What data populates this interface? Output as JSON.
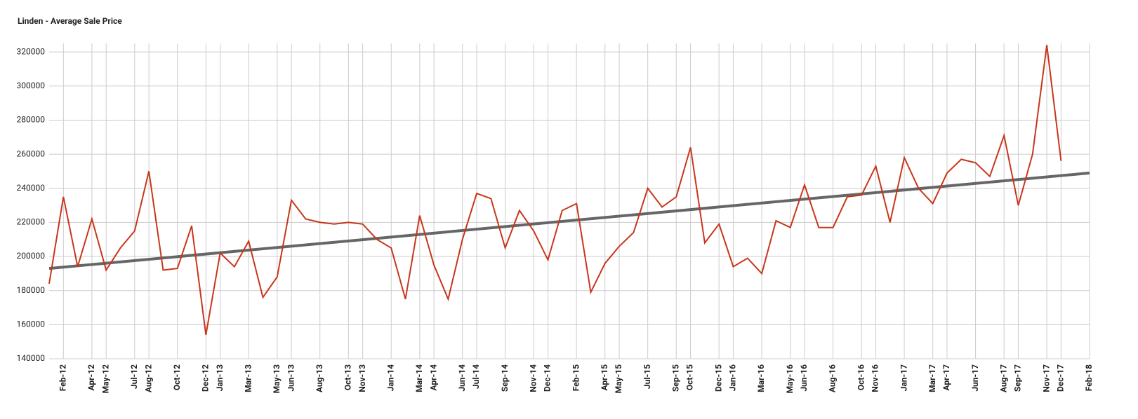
{
  "chart_data": {
    "type": "line",
    "title": "Linden - Average Sale Price",
    "x": [
      "2012-01",
      "2012-02",
      "2012-03",
      "2012-04",
      "2012-05",
      "2012-06",
      "2012-07",
      "2012-08",
      "2012-09",
      "2012-10",
      "2012-11",
      "2012-12",
      "2013-01",
      "2013-02",
      "2013-03",
      "2013-04",
      "2013-05",
      "2013-06",
      "2013-07",
      "2013-08",
      "2013-09",
      "2013-10",
      "2013-11",
      "2013-12",
      "2014-01",
      "2014-02",
      "2014-03",
      "2014-04",
      "2014-05",
      "2014-06",
      "2014-07",
      "2014-08",
      "2014-09",
      "2014-10",
      "2014-11",
      "2014-12",
      "2015-01",
      "2015-02",
      "2015-03",
      "2015-04",
      "2015-05",
      "2015-06",
      "2015-07",
      "2015-08",
      "2015-09",
      "2015-10",
      "2015-11",
      "2015-12",
      "2016-01",
      "2016-02",
      "2016-03",
      "2016-04",
      "2016-05",
      "2016-06",
      "2016-07",
      "2016-08",
      "2016-09",
      "2016-10",
      "2016-11",
      "2016-12",
      "2017-01",
      "2017-02",
      "2017-03",
      "2017-04",
      "2017-05",
      "2017-06",
      "2017-07",
      "2017-08",
      "2017-09",
      "2017-10",
      "2017-11",
      "2017-12"
    ],
    "values": [
      184000,
      235000,
      194000,
      222000,
      192000,
      205000,
      215000,
      250000,
      192000,
      193000,
      218000,
      154000,
      202000,
      194000,
      209000,
      176000,
      188000,
      233000,
      222000,
      220000,
      219000,
      220000,
      219000,
      210000,
      205000,
      175000,
      224000,
      195000,
      175000,
      210000,
      237000,
      234000,
      205000,
      227000,
      215000,
      198000,
      227000,
      231000,
      179000,
      196000,
      206000,
      214000,
      240000,
      229000,
      235000,
      264000,
      208000,
      219000,
      194000,
      199000,
      190000,
      221000,
      217000,
      242000,
      217000,
      217000,
      235000,
      236000,
      253000,
      220000,
      258000,
      240000,
      231000,
      249000,
      257000,
      255000,
      247000,
      271000,
      230000,
      260000,
      324000,
      256000
    ],
    "color": "#c8361b",
    "trend": {
      "x": [
        "2012-01",
        "2018-02"
      ],
      "values": [
        193000,
        249000
      ],
      "color": "#666666"
    },
    "xlim": [
      "2012-01",
      "2018-02"
    ],
    "xticks": [
      {
        "value": "2012-02",
        "label": "Feb-12"
      },
      {
        "value": "2012-04",
        "label": "Apr-12"
      },
      {
        "value": "2012-05",
        "label": "May-12"
      },
      {
        "value": "2012-07",
        "label": "Jul-12"
      },
      {
        "value": "2012-08",
        "label": "Aug-12"
      },
      {
        "value": "2012-10",
        "label": "Oct-12"
      },
      {
        "value": "2012-12",
        "label": "Dec-12"
      },
      {
        "value": "2013-01",
        "label": "Jan-13"
      },
      {
        "value": "2013-03",
        "label": "Mar-13"
      },
      {
        "value": "2013-05",
        "label": "May-13"
      },
      {
        "value": "2013-06",
        "label": "Jun-13"
      },
      {
        "value": "2013-08",
        "label": "Aug-13"
      },
      {
        "value": "2013-10",
        "label": "Oct-13"
      },
      {
        "value": "2013-11",
        "label": "Nov-13"
      },
      {
        "value": "2014-01",
        "label": "Jan-14"
      },
      {
        "value": "2014-03",
        "label": "Mar-14"
      },
      {
        "value": "2014-04",
        "label": "Apr-14"
      },
      {
        "value": "2014-06",
        "label": "Jun-14"
      },
      {
        "value": "2014-07",
        "label": "Jul-14"
      },
      {
        "value": "2014-09",
        "label": "Sep-14"
      },
      {
        "value": "2014-11",
        "label": "Nov-14"
      },
      {
        "value": "2014-12",
        "label": "Dec-14"
      },
      {
        "value": "2015-02",
        "label": "Feb-15"
      },
      {
        "value": "2015-04",
        "label": "Apr-15"
      },
      {
        "value": "2015-05",
        "label": "May-15"
      },
      {
        "value": "2015-07",
        "label": "Jul-15"
      },
      {
        "value": "2015-09",
        "label": "Sep-15"
      },
      {
        "value": "2015-10",
        "label": "Oct-15"
      },
      {
        "value": "2015-12",
        "label": "Dec-15"
      },
      {
        "value": "2016-01",
        "label": "Jan-16"
      },
      {
        "value": "2016-03",
        "label": "Mar-16"
      },
      {
        "value": "2016-05",
        "label": "May-16"
      },
      {
        "value": "2016-06",
        "label": "Jun-16"
      },
      {
        "value": "2016-08",
        "label": "Aug-16"
      },
      {
        "value": "2016-10",
        "label": "Oct-16"
      },
      {
        "value": "2016-11",
        "label": "Nov-16"
      },
      {
        "value": "2017-01",
        "label": "Jan-17"
      },
      {
        "value": "2017-03",
        "label": "Mar-17"
      },
      {
        "value": "2017-04",
        "label": "Apr-17"
      },
      {
        "value": "2017-06",
        "label": "Jun-17"
      },
      {
        "value": "2017-08",
        "label": "Aug-17"
      },
      {
        "value": "2017-09",
        "label": "Sep-17"
      },
      {
        "value": "2017-11",
        "label": "Nov-17"
      },
      {
        "value": "2017-12",
        "label": "Dec-17"
      },
      {
        "value": "2018-02",
        "label": "Feb-18"
      }
    ],
    "ylim": [
      140000,
      325000
    ],
    "yticks": [
      140000,
      160000,
      180000,
      200000,
      220000,
      240000,
      260000,
      280000,
      300000,
      320000
    ],
    "grid": true
  }
}
